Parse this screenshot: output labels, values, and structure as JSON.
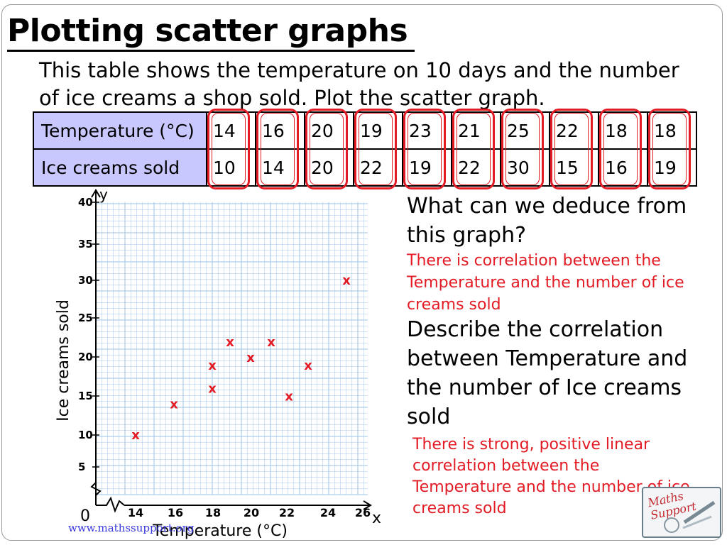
{
  "slide": {
    "title": "Plotting scatter graphs",
    "intro": "This table shows the temperature on 10 days and the number of ice creams a shop sold. Plot the scatter graph.",
    "question_1": "What can we deduce from this graph?",
    "answer_1": "There is correlation between the Temperature and the number of ice creams sold",
    "question_2": "Describe the correlation between Temperature and the number of Ice creams sold",
    "answer_2": "There is strong, positive linear correlation between the Temperature and the number of ice creams sold",
    "footer_url": "www.mathssupport.org",
    "logo_text": "Maths Support"
  },
  "table": {
    "row_labels": [
      "Temperature (°C)",
      "Ice creams sold"
    ],
    "temperature": [
      "14",
      "16",
      "20",
      "19",
      "23",
      "21",
      "25",
      "22",
      "18",
      "18"
    ],
    "ice_creams": [
      "10",
      "14",
      "20",
      "22",
      "19",
      "22",
      "30",
      "15",
      "16",
      "19"
    ]
  },
  "colors": {
    "accent": "#e21b25",
    "table_header_bg": "#c8c8ff",
    "grid": "#9ec3e6",
    "axis": "#000000"
  },
  "chart_data": {
    "type": "scatter",
    "xlabel": "Temperature (°C)",
    "ylabel": "Ice creams sold",
    "x_axis_letter": "x",
    "y_axis_letter": "y",
    "origin_label": "0",
    "xlim": [
      13,
      27
    ],
    "ylim": [
      3,
      40
    ],
    "x_ticks": [
      "14",
      "16",
      "18",
      "20",
      "22",
      "24",
      "26"
    ],
    "y_ticks": [
      "40",
      "35",
      "30",
      "25",
      "20",
      "15",
      "10",
      "5"
    ],
    "marker": "x",
    "grid": true,
    "points": [
      {
        "x": 14,
        "y": 10
      },
      {
        "x": 16,
        "y": 14
      },
      {
        "x": 20,
        "y": 20
      },
      {
        "x": 19,
        "y": 22
      },
      {
        "x": 23,
        "y": 19
      },
      {
        "x": 21,
        "y": 22
      },
      {
        "x": 25,
        "y": 30
      },
      {
        "x": 22,
        "y": 15
      },
      {
        "x": 18,
        "y": 16
      },
      {
        "x": 18,
        "y": 19
      }
    ]
  }
}
